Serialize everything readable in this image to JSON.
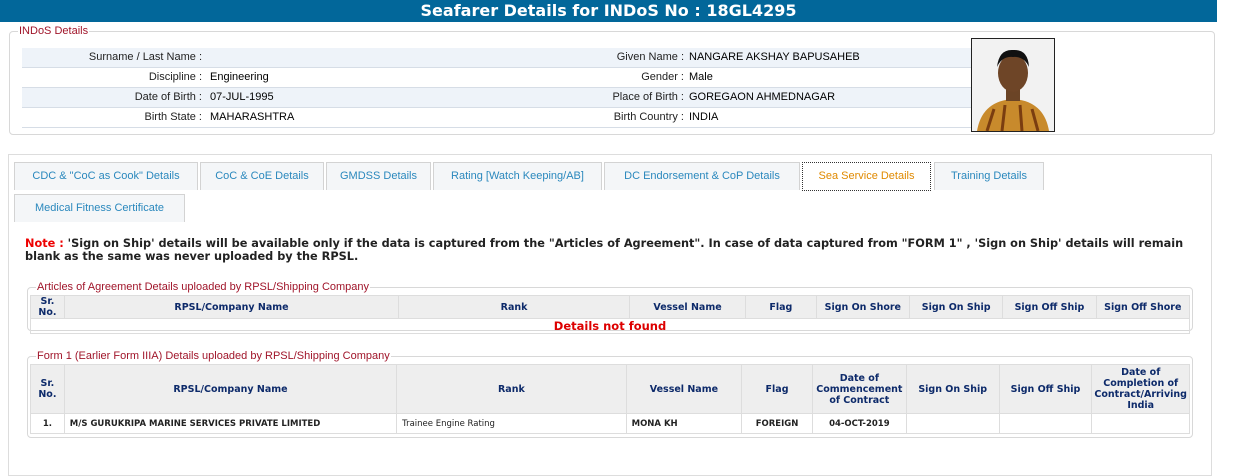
{
  "header": {
    "title": "Seafarer Details for INDoS No : 18GL4295"
  },
  "indos": {
    "legend": "INDoS Details",
    "rows": [
      {
        "l1": "Surname / Last Name :",
        "v1": "",
        "l2": "Given Name :",
        "v2": "NANGARE AKSHAY BAPUSAHEB"
      },
      {
        "l1": "Discipline :",
        "v1": "Engineering",
        "l2": "Gender :",
        "v2": "Male"
      },
      {
        "l1": "Date of Birth :",
        "v1": "07-JUL-1995",
        "l2": "Place of Birth :",
        "v2": "GOREGAON AHMEDNAGAR"
      },
      {
        "l1": "Birth State :",
        "v1": "MAHARASHTRA",
        "l2": "Birth Country :",
        "v2": "INDIA"
      }
    ]
  },
  "tabs": [
    "CDC & \"CoC as Cook\" Details",
    "CoC & CoE Details",
    "GMDSS Details",
    "Rating [Watch Keeping/AB]",
    "DC Endorsement & CoP Details",
    "Sea Service Details",
    "Training Details",
    "Medical Fitness Certificate"
  ],
  "active_tab": "Sea Service Details",
  "note": {
    "label": "Note :",
    "text": " 'Sign on Ship' details will be available only if the data is captured from the \"Articles of Agreement\". In case of data captured from \"FORM 1\" , 'Sign on Ship' details will remain blank as the same was never uploaded by the RPSL."
  },
  "articles": {
    "legend": "Articles of Agreement Details uploaded by RPSL/Shipping Company",
    "headers": [
      "Sr. No.",
      "RPSL/Company Name",
      "Rank",
      "Vessel Name",
      "Flag",
      "Sign On Shore",
      "Sign On Ship",
      "Sign Off Ship",
      "Sign Off Shore"
    ],
    "empty": "Details not found"
  },
  "form1": {
    "legend": "Form 1 (Earlier Form IIIA) Details uploaded by RPSL/Shipping Company",
    "headers": [
      "Sr. No.",
      "RPSL/Company Name",
      "Rank",
      "Vessel Name",
      "Flag",
      "Date of Commencement of Contract",
      "Sign On Ship",
      "Sign Off Ship",
      "Date of Completion of Contract/Arriving India"
    ],
    "rows": [
      [
        "1.",
        "M/S GURUKRIPA MARINE SERVICES PRIVATE LIMITED",
        "Trainee Engine Rating",
        "MONA KH",
        "FOREIGN",
        "04-OCT-2019",
        "",
        "",
        ""
      ]
    ]
  }
}
